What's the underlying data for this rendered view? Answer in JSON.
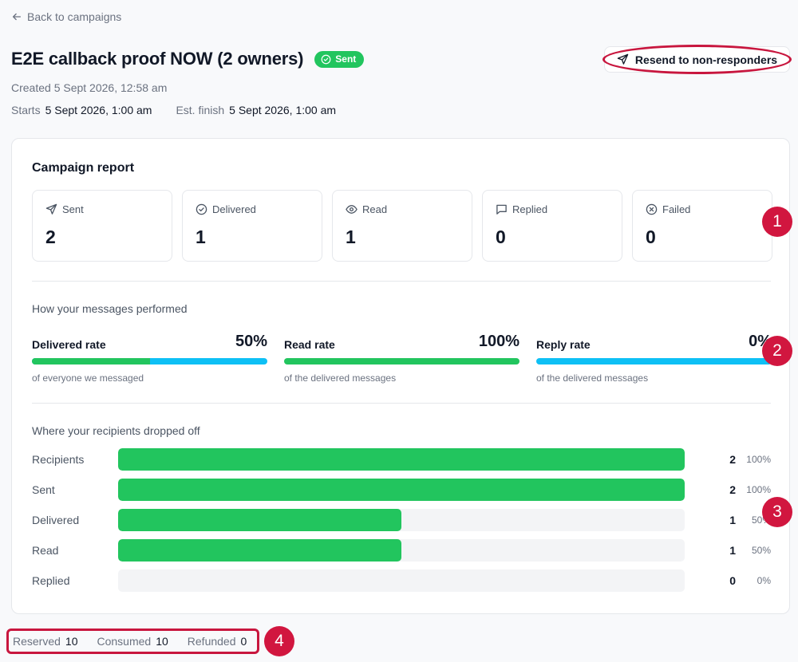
{
  "nav": {
    "back_label": "Back to campaigns"
  },
  "campaign": {
    "title": "E2E callback proof NOW (2 owners)",
    "status": "Sent",
    "created": "Created 5 Sept 2026, 12:58 am",
    "starts_label": "Starts",
    "starts_value": "5 Sept 2026, 1:00 am",
    "finish_label": "Est. finish",
    "finish_value": "5 Sept 2026, 1:00 am"
  },
  "actions": {
    "resend_label": "Resend to non-responders"
  },
  "report": {
    "title": "Campaign report",
    "stats": [
      {
        "label": "Sent",
        "value": "2",
        "icon": "send-icon"
      },
      {
        "label": "Delivered",
        "value": "1",
        "icon": "check-circle-icon"
      },
      {
        "label": "Read",
        "value": "1",
        "icon": "eye-icon"
      },
      {
        "label": "Replied",
        "value": "0",
        "icon": "message-icon"
      },
      {
        "label": "Failed",
        "value": "0",
        "icon": "x-circle-icon"
      }
    ],
    "performance_title": "How your messages performed",
    "rates": [
      {
        "label": "Delivered rate",
        "value": "50%",
        "fill": 0.5,
        "sub": "of everyone we messaged"
      },
      {
        "label": "Read rate",
        "value": "100%",
        "fill": 1.0,
        "sub": "of the delivered messages"
      },
      {
        "label": "Reply rate",
        "value": "0%",
        "fill": 0.0,
        "sub": "of the delivered messages"
      }
    ],
    "funnel_title": "Where your recipients dropped off",
    "funnel": [
      {
        "label": "Recipients",
        "count": "2",
        "pct": "100%",
        "fill": 1.0
      },
      {
        "label": "Sent",
        "count": "2",
        "pct": "100%",
        "fill": 1.0
      },
      {
        "label": "Delivered",
        "count": "1",
        "pct": "50%",
        "fill": 0.5
      },
      {
        "label": "Read",
        "count": "1",
        "pct": "50%",
        "fill": 0.5
      },
      {
        "label": "Replied",
        "count": "0",
        "pct": "0%",
        "fill": 0.0
      }
    ]
  },
  "credits": {
    "reserved_label": "Reserved",
    "reserved_value": "10",
    "consumed_label": "Consumed",
    "consumed_value": "10",
    "refunded_label": "Refunded",
    "refunded_value": "0"
  },
  "annotations": [
    "1",
    "2",
    "3",
    "4"
  ],
  "colors": {
    "accent_green": "#22c55e",
    "accent_blue": "#0ec0f5",
    "annotation_red": "#d1163f"
  }
}
